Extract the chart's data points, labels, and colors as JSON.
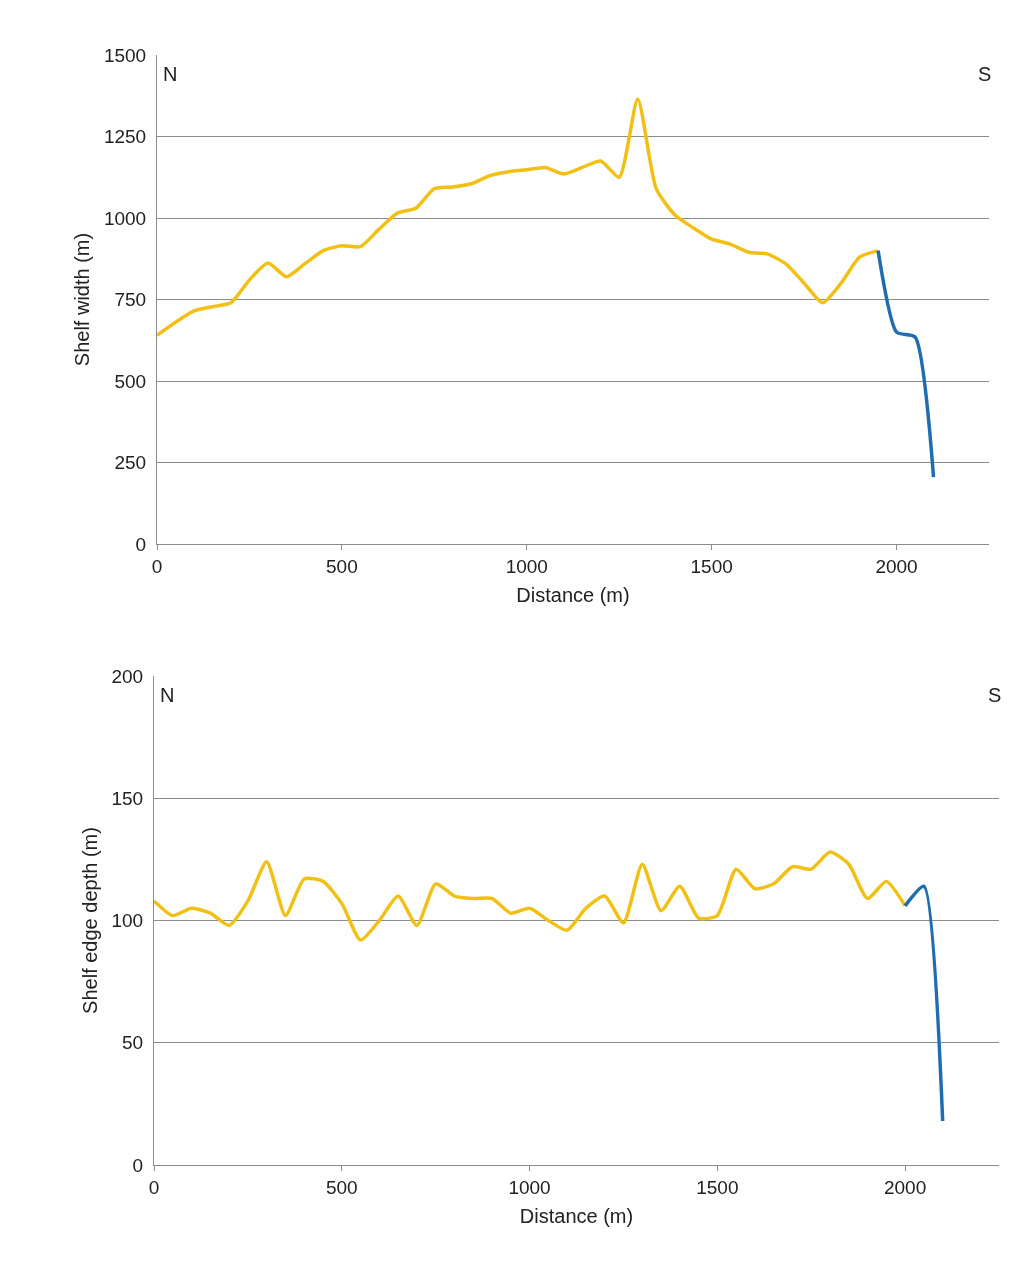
{
  "chart_data": [
    {
      "type": "line",
      "xlabel": "Distance (m)",
      "ylabel": "Shelf width (m)",
      "annotations": [
        "N",
        "S"
      ],
      "xlim": [
        0,
        2250
      ],
      "xticks": [
        0,
        500,
        1000,
        1500,
        2000
      ],
      "ylim": [
        0,
        1500
      ],
      "yticks": [
        0,
        250,
        500,
        750,
        1000,
        1250,
        1500
      ],
      "grid": "y",
      "marker": "none",
      "line_style": "solid",
      "series": [
        {
          "color": "#f2c014",
          "x": [
            0,
            50,
            100,
            150,
            200,
            250,
            300,
            350,
            400,
            450,
            500,
            550,
            600,
            650,
            700,
            750,
            800,
            850,
            900,
            950,
            1000,
            1050,
            1100,
            1150,
            1200,
            1250,
            1300,
            1350,
            1400,
            1450,
            1500,
            1550,
            1600,
            1650,
            1700,
            1750,
            1800,
            1850,
            1900,
            1950
          ],
          "values": [
            640,
            680,
            715,
            728,
            740,
            810,
            862,
            820,
            860,
            900,
            915,
            912,
            965,
            1015,
            1030,
            1090,
            1095,
            1105,
            1130,
            1142,
            1148,
            1155,
            1135,
            1155,
            1175,
            1125,
            1365,
            1090,
            1010,
            970,
            935,
            920,
            895,
            890,
            860,
            800,
            740,
            800,
            880,
            900
          ]
        },
        {
          "color": "#1f6db0",
          "x": [
            1950,
            2000,
            2050,
            2100
          ],
          "values": [
            900,
            650,
            635,
            205
          ]
        }
      ]
    },
    {
      "type": "line",
      "xlabel": "Distance (m)",
      "ylabel": "Shelf edge depth (m)",
      "annotations": [
        "N",
        "S"
      ],
      "xlim": [
        0,
        2250
      ],
      "xticks": [
        0,
        500,
        1000,
        1500,
        2000
      ],
      "ylim": [
        0,
        200
      ],
      "yticks": [
        0,
        50,
        100,
        150,
        200
      ],
      "grid": "y",
      "marker": "none",
      "line_style": "solid",
      "series": [
        {
          "color": "#f2c014",
          "x": [
            0,
            50,
            100,
            150,
            200,
            250,
            300,
            350,
            400,
            450,
            500,
            550,
            600,
            650,
            700,
            750,
            800,
            850,
            900,
            950,
            1000,
            1050,
            1100,
            1150,
            1200,
            1250,
            1300,
            1350,
            1400,
            1450,
            1500,
            1550,
            1600,
            1650,
            1700,
            1750,
            1800,
            1850,
            1900,
            1950,
            2000
          ],
          "values": [
            108,
            102,
            105,
            103,
            98,
            108,
            124,
            102,
            117,
            116,
            107,
            92,
            100,
            110,
            98,
            115,
            110,
            109,
            109,
            103,
            105,
            100,
            96,
            105,
            110,
            99,
            123,
            104,
            114,
            101,
            102,
            121,
            113,
            115,
            122,
            121,
            128,
            123,
            109,
            116,
            106
          ]
        },
        {
          "color": "#1f6db0",
          "x": [
            2000,
            2050,
            2100
          ],
          "values": [
            106,
            114,
            18
          ]
        }
      ]
    }
  ]
}
